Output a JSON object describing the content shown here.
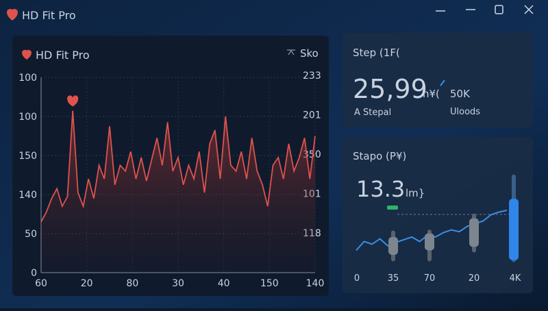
{
  "window": {
    "title": "HD Fit Pro"
  },
  "heart_chart": {
    "type": "area",
    "title": "HD Fit Pro",
    "right_label": "Sko",
    "color": "#e0524d",
    "y_labels": [
      100,
      100,
      150,
      140,
      50,
      0
    ],
    "y2_labels": [
      233,
      201,
      350,
      101,
      118
    ],
    "x_labels": [
      60,
      20,
      80,
      30,
      40,
      150,
      140
    ],
    "ylim": [
      0,
      100
    ],
    "values": [
      26,
      31,
      38,
      43,
      34,
      39,
      83,
      41,
      34,
      48,
      38,
      55,
      48,
      75,
      45,
      55,
      52,
      62,
      48,
      59,
      47,
      58,
      69,
      55,
      77,
      52,
      59,
      45,
      55,
      48,
      62,
      41,
      66,
      73,
      48,
      80,
      55,
      52,
      62,
      48,
      69,
      52,
      45,
      34,
      55,
      59,
      48,
      66,
      52,
      59,
      69,
      48,
      70
    ]
  },
  "steps_card": {
    "title": "Step (1F(",
    "value": "25,99",
    "unit": "n¥(",
    "secondary": "50K",
    "label_left": "A Stepal",
    "label_right": "Uloods"
  },
  "stapo_card": {
    "title": "Stapo (P¥)",
    "value": "13.3",
    "unit": "lm}",
    "chart": {
      "type": "line",
      "color": "#3b8fe6",
      "ylim": [
        0,
        100
      ],
      "values": [
        15,
        25,
        22,
        28,
        20,
        24,
        27,
        30,
        25,
        32,
        30,
        35,
        38,
        36,
        42,
        45,
        48,
        55,
        58,
        60
      ],
      "candles": [
        {
          "low": 5,
          "high": 35,
          "box_low": 10,
          "box_high": 30
        },
        {
          "low": 5,
          "high": 36,
          "box_low": 15,
          "box_high": 34
        },
        {
          "low": 15,
          "high": 54,
          "box_low": 19,
          "box_high": 51
        },
        {
          "low": 4,
          "high": 98,
          "box_low": 4,
          "box_high": 73
        }
      ],
      "x_labels": [
        0,
        35,
        70,
        20,
        "4K"
      ]
    }
  }
}
